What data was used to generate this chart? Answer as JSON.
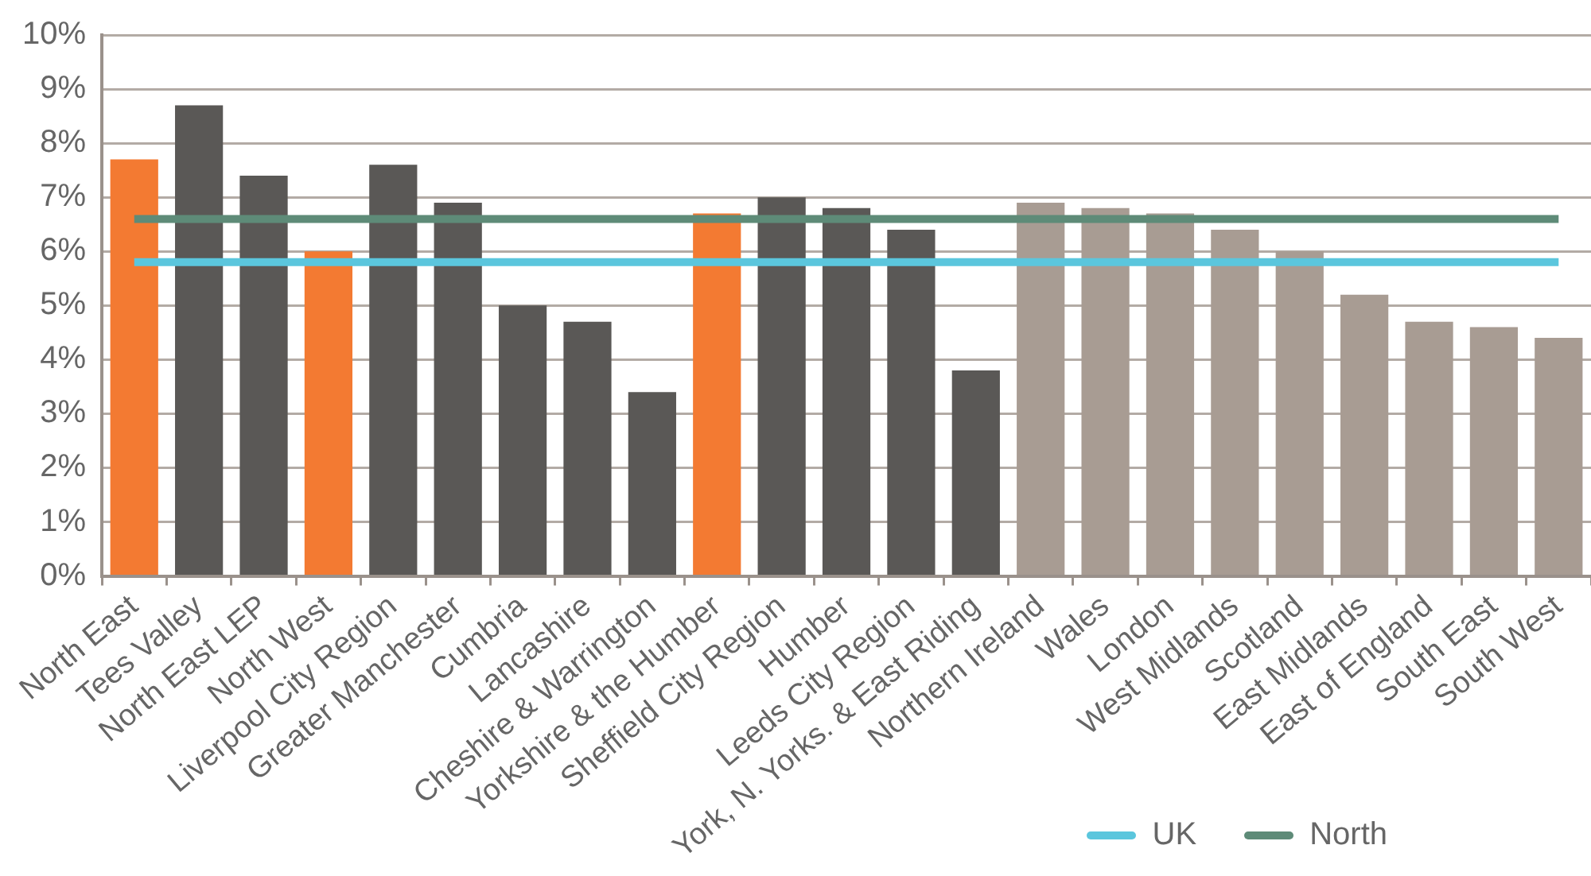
{
  "chart_data": {
    "type": "bar",
    "categories": [
      "North East",
      "Tees Valley",
      "North East LEP",
      "North West",
      "Liverpool City Region",
      "Greater Manchester",
      "Cumbria",
      "Lancashire",
      "Cheshire & Warrington",
      "Yorkshire & the Humber",
      "Sheffield City Region",
      "Humber",
      "Leeds City Region",
      "York, N. Yorks. & East Riding",
      "Northern Ireland",
      "Wales",
      "London",
      "West Midlands",
      "Scotland",
      "East Midlands",
      "East of England",
      "South East",
      "South West"
    ],
    "series": [
      {
        "colors": [
          "#f37a32",
          "#5a5856",
          "#5a5856",
          "#f37a32",
          "#5a5856",
          "#5a5856",
          "#5a5856",
          "#5a5856",
          "#5a5856",
          "#f37a32",
          "#5a5856",
          "#5a5856",
          "#5a5856",
          "#5a5856",
          "#a89c93",
          "#a89c93",
          "#a89c93",
          "#a89c93",
          "#a89c93",
          "#a89c93",
          "#a89c93",
          "#a89c93",
          "#a89c93"
        ],
        "values": [
          7.7,
          8.7,
          7.4,
          6.0,
          7.6,
          6.9,
          5.0,
          4.7,
          3.4,
          6.7,
          7.0,
          6.8,
          6.4,
          3.8,
          6.9,
          6.8,
          6.7,
          6.4,
          6.0,
          5.2,
          4.7,
          4.6,
          4.4
        ]
      },
      {
        "type": "line",
        "name": "UK",
        "color": "#5bc6dd",
        "values": [
          5.8,
          5.8,
          5.8,
          5.8,
          5.8,
          5.8,
          5.8,
          5.8,
          5.8,
          5.8,
          5.8,
          5.8,
          5.8,
          5.8,
          5.8,
          5.8,
          5.8,
          5.8,
          5.8,
          5.8,
          5.8,
          5.8,
          5.8
        ]
      },
      {
        "type": "line",
        "name": "North",
        "color": "#5e8b78",
        "values": [
          6.6,
          6.6,
          6.6,
          6.6,
          6.6,
          6.6,
          6.6,
          6.6,
          6.6,
          6.6,
          6.6,
          6.6,
          6.6,
          6.6,
          6.6,
          6.6,
          6.6,
          6.6,
          6.6,
          6.6,
          6.6,
          6.6,
          6.6
        ]
      }
    ],
    "ylim": [
      0,
      10
    ],
    "yticks": [
      {
        "value": 0,
        "label": "0%"
      },
      {
        "value": 1,
        "label": "1%"
      },
      {
        "value": 2,
        "label": "2%"
      },
      {
        "value": 3,
        "label": "3%"
      },
      {
        "value": 4,
        "label": "4%"
      },
      {
        "value": 5,
        "label": "5%"
      },
      {
        "value": 6,
        "label": "6%"
      },
      {
        "value": 7,
        "label": "7%"
      },
      {
        "value": 8,
        "label": "8%"
      },
      {
        "value": 9,
        "label": "9%"
      },
      {
        "value": 10,
        "label": "10%"
      }
    ],
    "grid": "y",
    "legend": "bottom right",
    "marker": "none"
  }
}
